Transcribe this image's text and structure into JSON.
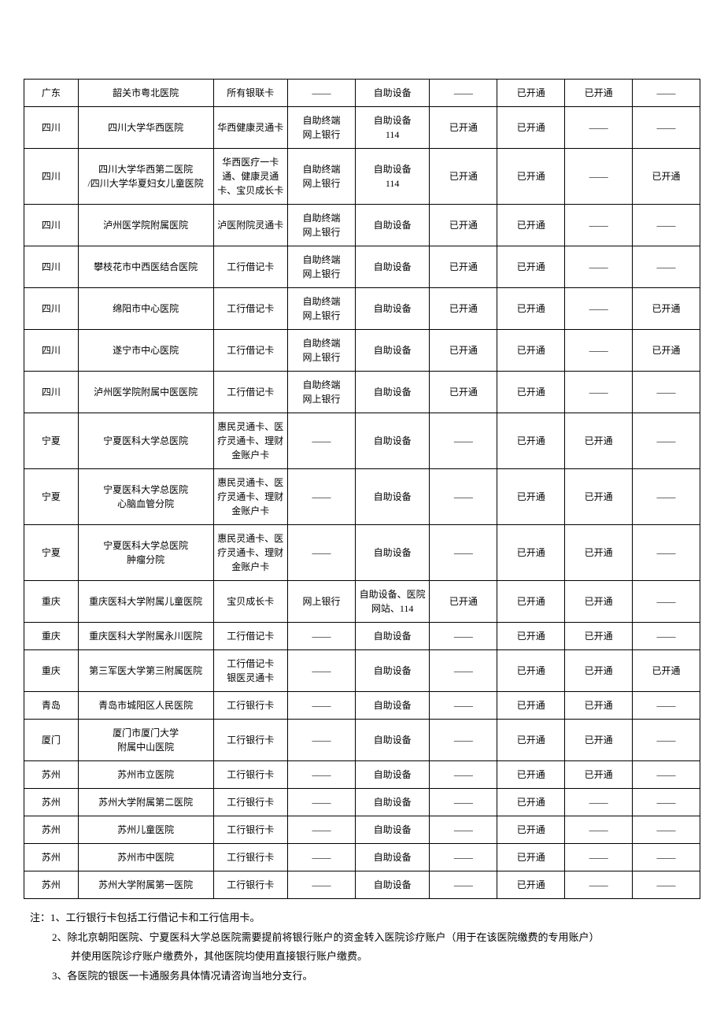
{
  "table": {
    "columns_count": 9,
    "border_color": "#000000",
    "background_color": "#ffffff",
    "font_size": 12,
    "text_color": "#000000",
    "column_widths_pct": [
      8,
      20,
      11,
      10,
      11,
      10,
      10,
      10,
      10
    ],
    "rows": [
      [
        "广东",
        "韶关市粤北医院",
        "所有银联卡",
        "——",
        "自助设备",
        "——",
        "已开通",
        "已开通",
        "——"
      ],
      [
        "四川",
        "四川大学华西医院",
        "华西健康灵通卡",
        "自助终端\n网上银行",
        "自助设备\n114",
        "已开通",
        "已开通",
        "——",
        "——"
      ],
      [
        "四川",
        "四川大学华西第二医院\n/四川大学华夏妇女儿童医院",
        "华西医疗一卡通、健康灵通卡、宝贝成长卡",
        "自助终端\n网上银行",
        "自助设备\n114",
        "已开通",
        "已开通",
        "——",
        "已开通"
      ],
      [
        "四川",
        "泸州医学院附属医院",
        "泸医附院灵通卡",
        "自助终端\n网上银行",
        "自助设备",
        "已开通",
        "已开通",
        "——",
        "——"
      ],
      [
        "四川",
        "攀枝花市中西医结合医院",
        "工行借记卡",
        "自助终端\n网上银行",
        "自助设备",
        "已开通",
        "已开通",
        "——",
        "——"
      ],
      [
        "四川",
        "绵阳市中心医院",
        "工行借记卡",
        "自助终端\n网上银行",
        "自助设备",
        "已开通",
        "已开通",
        "——",
        "已开通"
      ],
      [
        "四川",
        "遂宁市中心医院",
        "工行借记卡",
        "自助终端\n网上银行",
        "自助设备",
        "已开通",
        "已开通",
        "——",
        "已开通"
      ],
      [
        "四川",
        "泸州医学院附属中医医院",
        "工行借记卡",
        "自助终端\n网上银行",
        "自助设备",
        "已开通",
        "已开通",
        "——",
        "——"
      ],
      [
        "宁夏",
        "宁夏医科大学总医院",
        "惠民灵通卡、医疗灵通卡、理财金账户卡",
        "——",
        "自助设备",
        "——",
        "已开通",
        "已开通",
        "——"
      ],
      [
        "宁夏",
        "宁夏医科大学总医院\n心脑血管分院",
        "惠民灵通卡、医疗灵通卡、理财金账户卡",
        "——",
        "自助设备",
        "——",
        "已开通",
        "已开通",
        "——"
      ],
      [
        "宁夏",
        "宁夏医科大学总医院\n肿瘤分院",
        "惠民灵通卡、医疗灵通卡、理财金账户卡",
        "——",
        "自助设备",
        "——",
        "已开通",
        "已开通",
        "——"
      ],
      [
        "重庆",
        "重庆医科大学附属儿童医院",
        "宝贝成长卡",
        "网上银行",
        "自助设备、医院网站、114",
        "已开通",
        "已开通",
        "已开通",
        "——"
      ],
      [
        "重庆",
        "重庆医科大学附属永川医院",
        "工行借记卡",
        "——",
        "自助设备",
        "——",
        "已开通",
        "已开通",
        "——"
      ],
      [
        "重庆",
        "第三军医大学第三附属医院",
        "工行借记卡\n银医灵通卡",
        "——",
        "自助设备",
        "——",
        "已开通",
        "已开通",
        "已开通"
      ],
      [
        "青岛",
        "青岛市城阳区人民医院",
        "工行银行卡",
        "——",
        "自助设备",
        "——",
        "已开通",
        "已开通",
        "——"
      ],
      [
        "厦门",
        "厦门市厦门大学\n附属中山医院",
        "工行银行卡",
        "——",
        "自助设备",
        "——",
        "已开通",
        "已开通",
        "——"
      ],
      [
        "苏州",
        "苏州市立医院",
        "工行银行卡",
        "——",
        "自助设备",
        "——",
        "已开通",
        "已开通",
        "——"
      ],
      [
        "苏州",
        "苏州大学附属第二医院",
        "工行银行卡",
        "——",
        "自助设备",
        "——",
        "已开通",
        "——",
        "——"
      ],
      [
        "苏州",
        "苏州儿童医院",
        "工行银行卡",
        "——",
        "自助设备",
        "——",
        "已开通",
        "——",
        "——"
      ],
      [
        "苏州",
        "苏州市中医院",
        "工行银行卡",
        "——",
        "自助设备",
        "——",
        "已开通",
        "——",
        "——"
      ],
      [
        "苏州",
        "苏州大学附属第一医院",
        "工行银行卡",
        "——",
        "自助设备",
        "——",
        "已开通",
        "——",
        "——"
      ]
    ]
  },
  "notes": {
    "prefix": "注：",
    "font_size": 13,
    "text_color": "#000000",
    "items": [
      "1、工行银行卡包括工行借记卡和工行信用卡。",
      "2、除北京朝阳医院、宁夏医科大学总医院需要提前将银行账户的资金转入医院诊疗账户（用于在该医院缴费的专用账户）",
      "并使用医院诊疗账户缴费外，其他医院均使用直接银行账户缴费。",
      "3、各医院的银医一卡通服务具体情况请咨询当地分支行。"
    ]
  }
}
